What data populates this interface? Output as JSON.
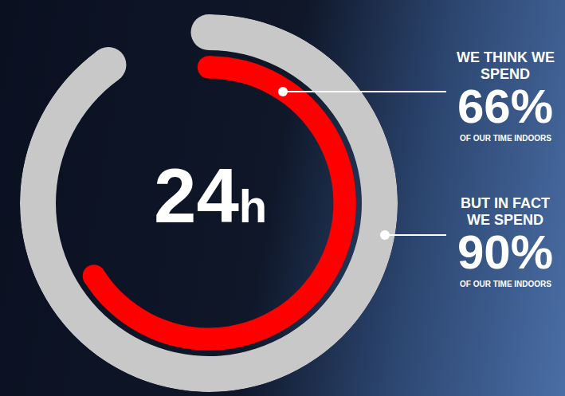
{
  "chart_data": {
    "type": "ring",
    "center_value": 24,
    "center_unit": "h",
    "categories": [
      "WE THINK WE SPEND",
      "BUT IN FACT WE SPEND"
    ],
    "values": [
      66,
      90
    ],
    "value_labels": [
      "66%",
      "90%"
    ],
    "annotations": [
      "OF OUR TIME INDOORS",
      "OF OUR TIME INDOORS"
    ],
    "colors": [
      "#ff0000",
      "#c8c8c8"
    ]
  }
}
